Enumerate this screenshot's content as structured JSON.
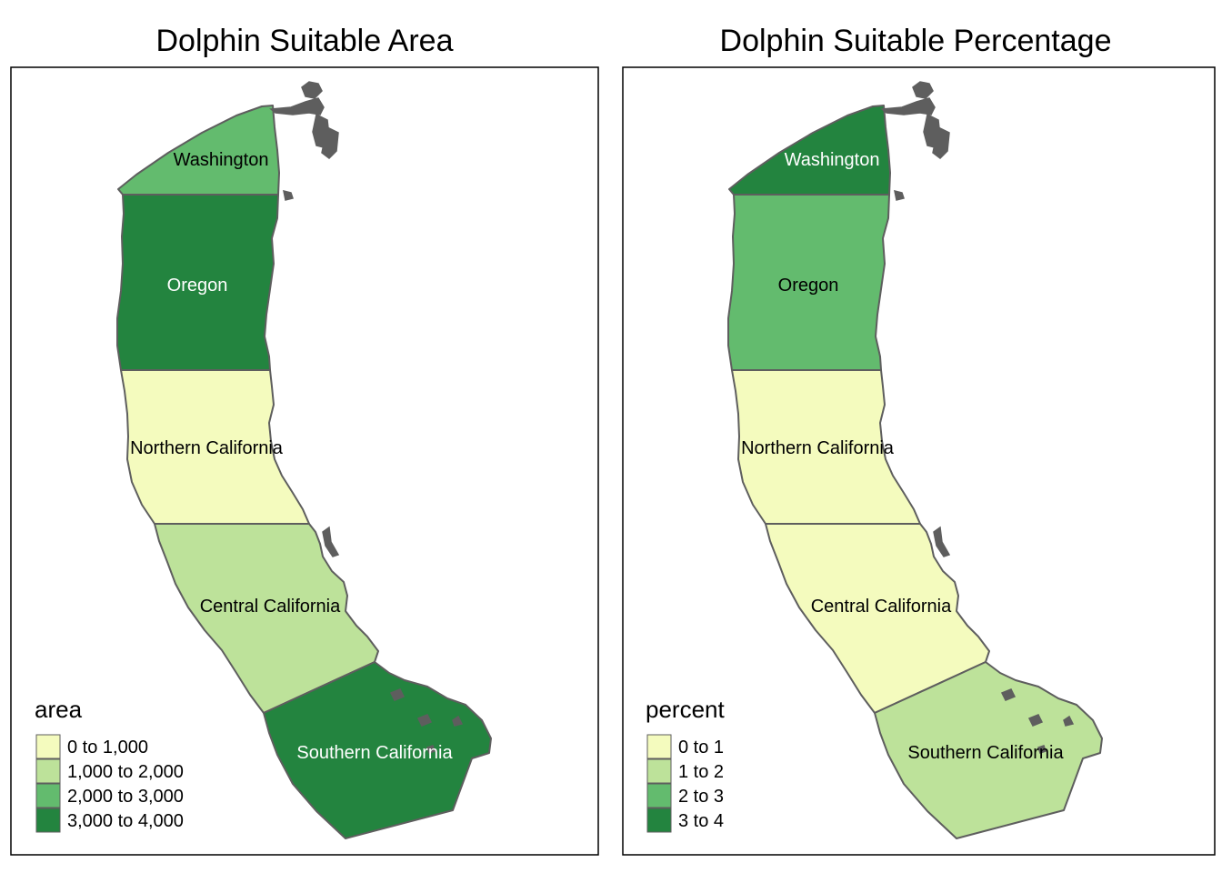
{
  "maps": [
    {
      "title": "Dolphin Suitable Area",
      "legend_title": "area",
      "legend_labels": [
        "0 to 1,000",
        "1,000 to 2,000",
        "2,000 to 3,000",
        "3,000 to 4,000"
      ],
      "regions": [
        {
          "name": "Washington",
          "class": 2
        },
        {
          "name": "Oregon",
          "class": 3
        },
        {
          "name": "Northern California",
          "class": 0
        },
        {
          "name": "Central California",
          "class": 1
        },
        {
          "name": "Southern California",
          "class": 3
        }
      ]
    },
    {
      "title": "Dolphin Suitable Percentage",
      "legend_title": "percent",
      "legend_labels": [
        "0 to 1",
        "1 to 2",
        "2 to 3",
        "3 to 4"
      ],
      "regions": [
        {
          "name": "Washington",
          "class": 3
        },
        {
          "name": "Oregon",
          "class": 2
        },
        {
          "name": "Northern California",
          "class": 0
        },
        {
          "name": "Central California",
          "class": 0
        },
        {
          "name": "Southern California",
          "class": 1
        }
      ]
    }
  ],
  "palette": [
    "#f4fbbe",
    "#bde29a",
    "#63bb6e",
    "#23843f"
  ],
  "border_color": "#5e5e5e"
}
